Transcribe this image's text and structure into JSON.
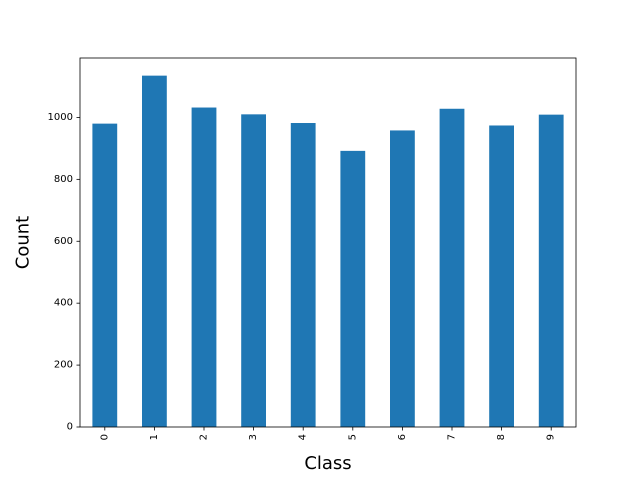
{
  "chart_data": {
    "type": "bar",
    "title": "",
    "xlabel": "Class",
    "ylabel": "Count",
    "categories": [
      "0",
      "1",
      "2",
      "3",
      "4",
      "5",
      "6",
      "7",
      "8",
      "9"
    ],
    "values": [
      980,
      1135,
      1032,
      1010,
      982,
      892,
      958,
      1028,
      974,
      1009
    ],
    "ylim": [
      0,
      1192
    ],
    "yticks": [
      0,
      200,
      400,
      600,
      800,
      1000
    ],
    "grid": false,
    "legend": "none",
    "bar_color": "#1f77b4"
  }
}
